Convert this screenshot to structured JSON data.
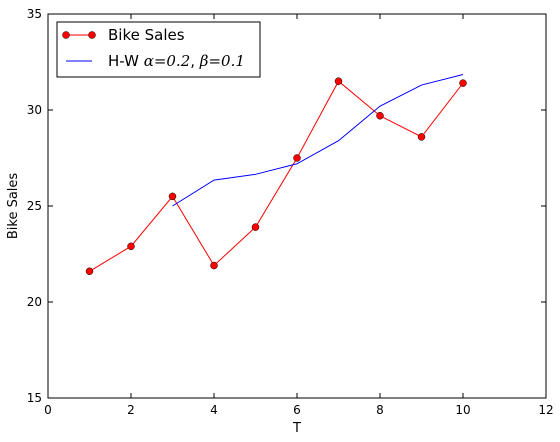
{
  "chart_data": {
    "type": "line",
    "xlabel": "T",
    "ylabel": "Bike Sales",
    "xlim": [
      0,
      12
    ],
    "ylim": [
      15,
      35
    ],
    "xticks": [
      0,
      2,
      4,
      6,
      8,
      10,
      12
    ],
    "yticks": [
      15,
      20,
      25,
      30,
      35
    ],
    "grid": false,
    "legend_position": "top-left",
    "series": [
      {
        "name": "Bike Sales",
        "color": "#ff0000",
        "marker": "circle",
        "x": [
          1,
          2,
          3,
          4,
          5,
          6,
          7,
          8,
          9,
          10
        ],
        "y": [
          21.6,
          22.9,
          25.5,
          21.9,
          23.9,
          27.5,
          31.5,
          29.7,
          28.6,
          31.4
        ]
      },
      {
        "name": "H-W α=0.2, β=0.1",
        "name_parts": [
          "H-W ",
          "α=0.2",
          ", ",
          "β=0.1"
        ],
        "color": "#0000ff",
        "marker": "none",
        "x": [
          3,
          4,
          5,
          6,
          7,
          8,
          9,
          10
        ],
        "y": [
          25.0,
          26.35,
          26.65,
          27.2,
          28.4,
          30.2,
          31.3,
          31.85
        ]
      }
    ]
  }
}
